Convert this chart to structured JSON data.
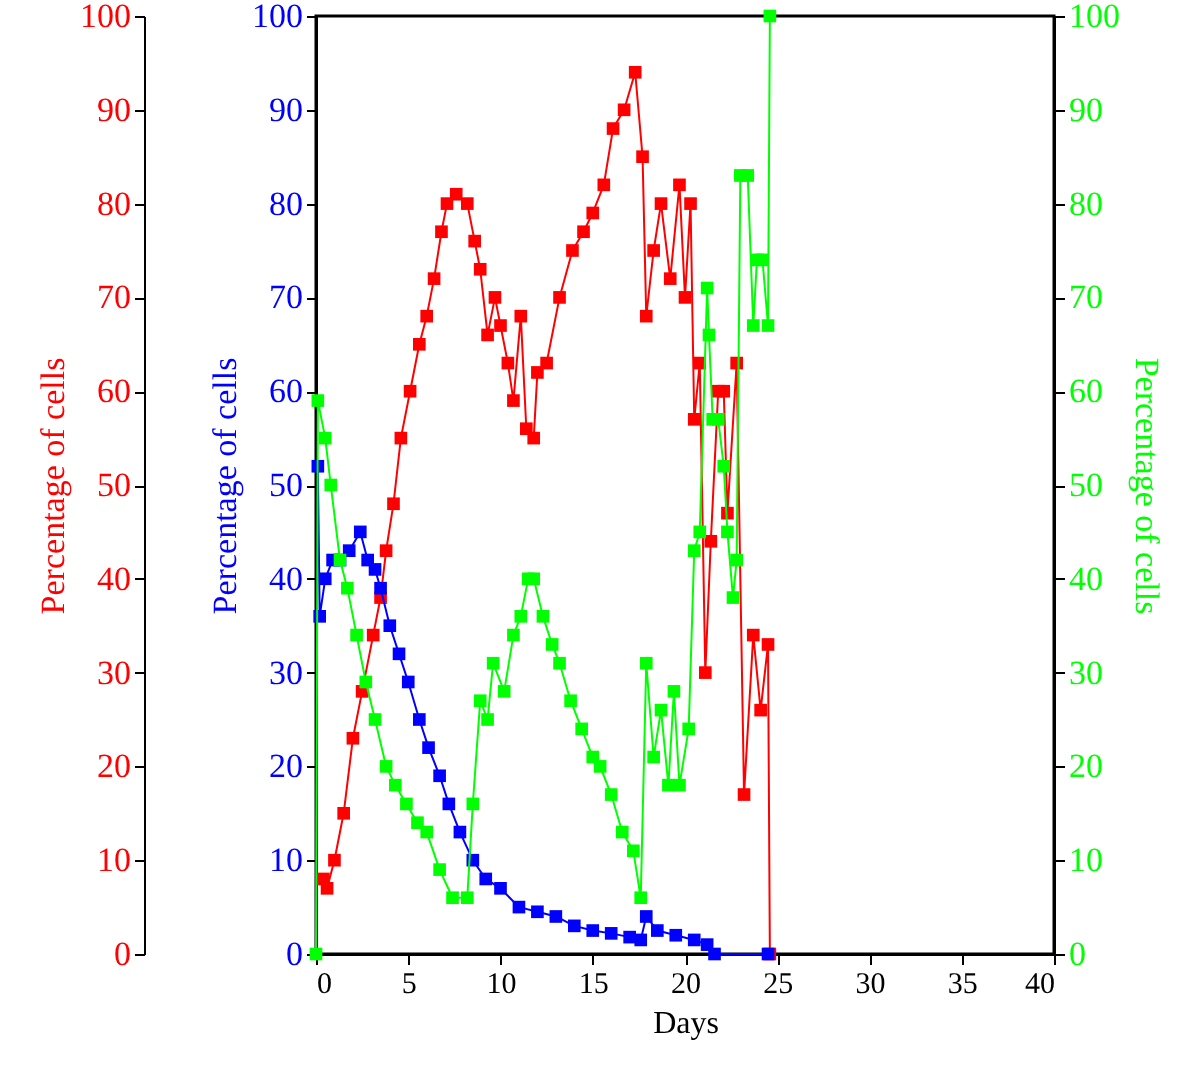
{
  "chart_data": {
    "type": "line",
    "xlabel": "Days",
    "ylabel": "Percentage of cells",
    "y2label": "Percentage of cells",
    "y3label": "Percentage of cells",
    "xlim": [
      0,
      40
    ],
    "xticks": [
      0,
      5,
      10,
      15,
      20,
      25,
      30,
      35,
      40
    ],
    "ylim": [
      0,
      100
    ],
    "yticks": [
      0,
      10,
      20,
      30,
      40,
      50,
      60,
      70,
      80,
      90,
      100
    ],
    "y2lim": [
      0,
      100
    ],
    "y2ticks": [
      0,
      10,
      20,
      30,
      40,
      50,
      60,
      70,
      80,
      90,
      100
    ],
    "y3lim": [
      0,
      100
    ],
    "y3ticks": [
      0,
      10,
      20,
      30,
      40,
      50,
      60,
      70,
      80,
      90,
      100
    ],
    "marker": "square",
    "line_style": "solid",
    "grid": false,
    "series": [
      {
        "axis": "y3",
        "color": "#ff0000",
        "x": [
          0.4,
          0.6,
          1,
          1.5,
          2,
          2.5,
          3.1,
          3.5,
          3.8,
          4.2,
          4.6,
          5.1,
          5.6,
          6,
          6.4,
          6.8,
          7.1,
          7.6,
          8.2,
          8.6,
          8.9,
          9.3,
          9.7,
          10,
          10.4,
          10.7,
          11.1,
          11.4,
          11.8,
          12,
          12.5,
          13.2,
          13.9,
          14.5,
          15,
          15.6,
          16.1,
          16.7,
          17.3,
          17.7,
          17.9,
          18.3,
          18.7,
          19.2,
          19.7,
          20,
          20.3,
          20.5,
          20.8,
          21.1,
          21.4,
          21.8,
          22.1,
          22.3,
          22.8,
          23.2,
          23.7,
          24.1,
          24.5,
          24.6
        ],
        "values": [
          8,
          7,
          10,
          15,
          23,
          28,
          34,
          38,
          43,
          48,
          55,
          60,
          65,
          68,
          72,
          77,
          80,
          81,
          80,
          76,
          73,
          66,
          70,
          67,
          63,
          59,
          68,
          56,
          55,
          62,
          63,
          70,
          75,
          77,
          79,
          82,
          88,
          90,
          94,
          85,
          68,
          75,
          80,
          72,
          82,
          70,
          80,
          57,
          63,
          30,
          44,
          60,
          60,
          47,
          63,
          17,
          34,
          26,
          33,
          0
        ]
      },
      {
        "axis": "y",
        "color": "#0000ff",
        "x": [
          0.1,
          0.2,
          0.5,
          0.9,
          1.3,
          1.8,
          2.4,
          2.8,
          3.2,
          3.5,
          4,
          4.5,
          5,
          5.6,
          6.1,
          6.7,
          7.2,
          7.8,
          8.5,
          9.2,
          10,
          11,
          12,
          13,
          14,
          15,
          16,
          17,
          17.6,
          17.9,
          18.5,
          19.5,
          20.5,
          21.2,
          21.6,
          24.5
        ],
        "values": [
          52,
          36,
          40,
          42,
          42,
          43,
          45,
          42,
          41,
          39,
          35,
          32,
          29,
          25,
          22,
          19,
          16,
          13,
          10,
          8,
          7,
          5,
          4.5,
          4,
          3,
          2.5,
          2.2,
          1.8,
          1.5,
          4,
          2.5,
          2,
          1.5,
          1,
          0,
          0
        ]
      },
      {
        "axis": "y2",
        "color": "#00ff00",
        "x": [
          0,
          0.1,
          0.5,
          0.8,
          1.3,
          1.7,
          2.2,
          2.7,
          3.2,
          3.8,
          4.3,
          4.9,
          5.5,
          6,
          6.7,
          7.4,
          8.2,
          8.5,
          8.9,
          9.3,
          9.6,
          10.2,
          10.7,
          11.1,
          11.5,
          11.8,
          12.3,
          12.8,
          13.2,
          13.8,
          14.4,
          15,
          15.4,
          16,
          16.6,
          17.2,
          17.6,
          17.9,
          18.3,
          18.7,
          19.1,
          19.4,
          19.7,
          20.2,
          20.5,
          20.8,
          21.2,
          21.3,
          21.5,
          21.8,
          22.1,
          22.3,
          22.6,
          22.8,
          23,
          23.4,
          23.7,
          23.9,
          24.2,
          24.5,
          24.6
        ],
        "values": [
          0,
          59,
          55,
          50,
          42,
          39,
          34,
          29,
          25,
          20,
          18,
          16,
          14,
          13,
          9,
          6,
          6,
          16,
          27,
          25,
          31,
          28,
          34,
          36,
          40,
          40,
          36,
          33,
          31,
          27,
          24,
          21,
          20,
          17,
          13,
          11,
          6,
          31,
          21,
          26,
          18,
          28,
          18,
          24,
          43,
          45,
          71,
          66,
          57,
          57,
          52,
          45,
          38,
          42,
          83,
          83,
          67,
          74,
          74,
          67,
          100
        ]
      }
    ]
  }
}
